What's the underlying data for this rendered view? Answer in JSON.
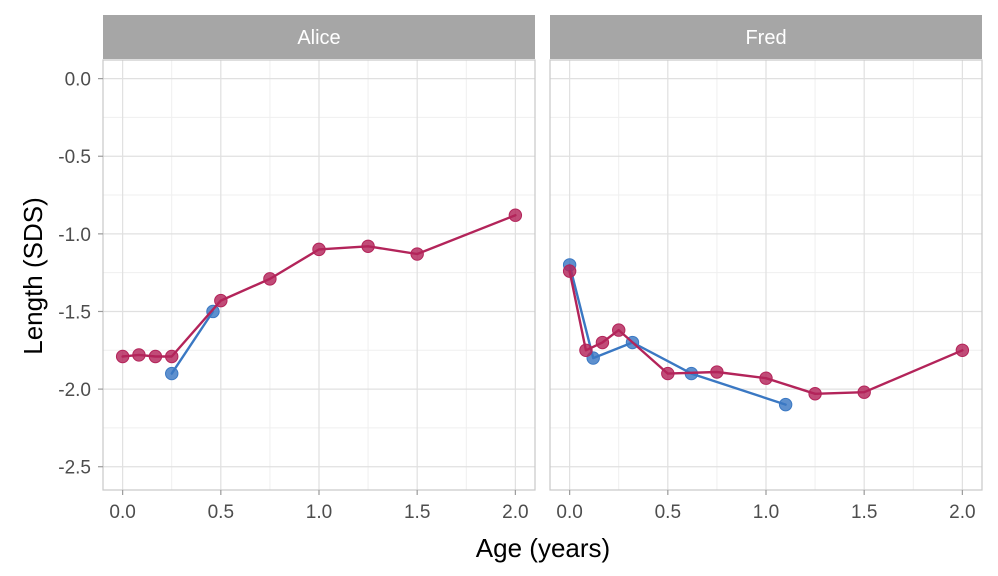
{
  "chart_data": {
    "type": "line",
    "xlabel": "Age (years)",
    "ylabel": "Length (SDS)",
    "xlim": [
      -0.1,
      2.1
    ],
    "ylim": [
      -2.65,
      0.12
    ],
    "x_ticks": [
      0.0,
      0.5,
      1.0,
      1.5,
      2.0
    ],
    "x_tick_labels": [
      "0.0",
      "0.5",
      "1.0",
      "1.5",
      "2.0"
    ],
    "y_ticks": [
      0.0,
      -0.5,
      -1.0,
      -1.5,
      -2.0,
      -2.5
    ],
    "y_tick_labels": [
      "0.0",
      "-0.5",
      "-1.0",
      "-1.5",
      "-2.0",
      "-2.5"
    ],
    "grid": true,
    "colors": {
      "blue": "#3a78c3",
      "red": "#b3245a",
      "strip": "#a6a6a6",
      "grid": "#e0e0e0",
      "border": "#c8c8c8"
    },
    "panels": [
      {
        "title": "Alice",
        "series": [
          {
            "color": "blue",
            "x": [
              0.25,
              0.46
            ],
            "y": [
              -1.9,
              -1.5
            ]
          },
          {
            "color": "red",
            "x": [
              0.0,
              0.083,
              0.167,
              0.25,
              0.5,
              0.75,
              1.0,
              1.25,
              1.5,
              2.0
            ],
            "y": [
              -1.79,
              -1.78,
              -1.79,
              -1.79,
              -1.43,
              -1.29,
              -1.1,
              -1.08,
              -1.13,
              -0.88
            ]
          }
        ]
      },
      {
        "title": "Fred",
        "series": [
          {
            "color": "blue",
            "x": [
              0.0,
              0.12,
              0.32,
              0.62,
              1.1
            ],
            "y": [
              -1.2,
              -1.8,
              -1.7,
              -1.9,
              -2.1
            ]
          },
          {
            "color": "red",
            "x": [
              0.0,
              0.083,
              0.167,
              0.25,
              0.5,
              0.75,
              1.0,
              1.25,
              1.5,
              2.0
            ],
            "y": [
              -1.24,
              -1.75,
              -1.7,
              -1.62,
              -1.9,
              -1.89,
              -1.93,
              -2.03,
              -2.02,
              -1.75
            ]
          }
        ]
      }
    ]
  }
}
